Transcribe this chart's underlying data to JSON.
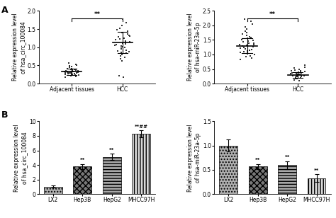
{
  "panel_A_left": {
    "ylabel": "Relative expression level\nof hsa_circ_100084",
    "xlabel_groups": [
      "Adjacent tissues",
      "HCC"
    ],
    "ylim": [
      0,
      2.0
    ],
    "yticks": [
      0,
      0.5,
      1.0,
      1.5,
      2.0
    ],
    "group1_mean": 0.33,
    "group1_sd": 0.09,
    "group2_mean": 1.13,
    "group2_sd": 0.3,
    "sig_text": "**",
    "group1_points": [
      0.18,
      0.2,
      0.22,
      0.23,
      0.24,
      0.25,
      0.25,
      0.26,
      0.27,
      0.28,
      0.28,
      0.29,
      0.29,
      0.3,
      0.3,
      0.31,
      0.31,
      0.32,
      0.32,
      0.33,
      0.33,
      0.34,
      0.34,
      0.35,
      0.35,
      0.36,
      0.37,
      0.38,
      0.39,
      0.4,
      0.41,
      0.42,
      0.44,
      0.46,
      0.48,
      0.5,
      0.53,
      0.57
    ],
    "group2_points": [
      0.18,
      0.22,
      0.62,
      0.68,
      0.72,
      0.76,
      0.8,
      0.83,
      0.86,
      0.88,
      0.9,
      0.92,
      0.95,
      0.97,
      0.99,
      1.01,
      1.03,
      1.05,
      1.07,
      1.09,
      1.11,
      1.13,
      1.15,
      1.17,
      1.2,
      1.22,
      1.25,
      1.28,
      1.3,
      1.33,
      1.36,
      1.4,
      1.44,
      1.48,
      1.53,
      1.6,
      1.68,
      1.78
    ]
  },
  "panel_A_right": {
    "ylabel": "Relative expression level\nof hsa-miR-23a-5p",
    "xlabel_groups": [
      "Adjacent tissues",
      "HCC"
    ],
    "ylim": [
      0,
      2.5
    ],
    "yticks": [
      0,
      0.5,
      1.0,
      1.5,
      2.0,
      2.5
    ],
    "group1_mean": 1.3,
    "group1_sd": 0.25,
    "group2_mean": 0.3,
    "group2_sd": 0.1,
    "sig_text": "**",
    "group1_points": [
      0.82,
      0.88,
      0.92,
      0.96,
      1.0,
      1.03,
      1.06,
      1.08,
      1.1,
      1.12,
      1.14,
      1.17,
      1.19,
      1.22,
      1.25,
      1.27,
      1.29,
      1.31,
      1.33,
      1.35,
      1.38,
      1.4,
      1.43,
      1.46,
      1.49,
      1.52,
      1.55,
      1.58,
      1.62,
      1.66,
      1.7,
      1.75,
      1.8,
      1.87,
      1.95,
      2.05,
      2.15,
      2.22
    ],
    "group2_points": [
      0.1,
      0.13,
      0.16,
      0.18,
      0.2,
      0.22,
      0.24,
      0.25,
      0.26,
      0.27,
      0.28,
      0.29,
      0.3,
      0.31,
      0.32,
      0.33,
      0.34,
      0.35,
      0.36,
      0.37,
      0.38,
      0.39,
      0.41,
      0.43,
      0.45,
      0.47,
      0.5,
      0.53,
      0.57,
      0.63
    ]
  },
  "panel_B_left": {
    "ylabel": "Relative expression level\nof hsa_circ_100084",
    "categories": [
      "LX2",
      "Hep3B",
      "HepG2",
      "MHCC97H"
    ],
    "values": [
      1.0,
      3.8,
      5.1,
      8.3
    ],
    "errors": [
      0.15,
      0.35,
      0.45,
      0.5
    ],
    "ylim": [
      0,
      10
    ],
    "yticks": [
      0,
      2,
      4,
      6,
      8,
      10
    ],
    "sig_labels": [
      "",
      "**",
      "**",
      "**##"
    ]
  },
  "panel_B_right": {
    "ylabel": "Relative expression level\nof hsa-miR-23a-5p",
    "categories": [
      "LX2",
      "Hep3B",
      "HepG2",
      "MHCC97H"
    ],
    "values": [
      1.0,
      0.57,
      0.6,
      0.33
    ],
    "errors": [
      0.12,
      0.05,
      0.08,
      0.08
    ],
    "ylim": [
      0,
      1.5
    ],
    "yticks": [
      0.0,
      0.5,
      1.0,
      1.5
    ],
    "sig_labels": [
      "",
      "**",
      "**",
      "**"
    ]
  },
  "label_fontsize": 5.5,
  "tick_fontsize": 5.5,
  "sig_fontsize": 6.0,
  "hatch_patterns": [
    "....",
    "xxxx",
    "----",
    "||||"
  ],
  "bar_face_colors": [
    "#b0b0b0",
    "#787878",
    "#a8a8a8",
    "#d8d8d8"
  ]
}
